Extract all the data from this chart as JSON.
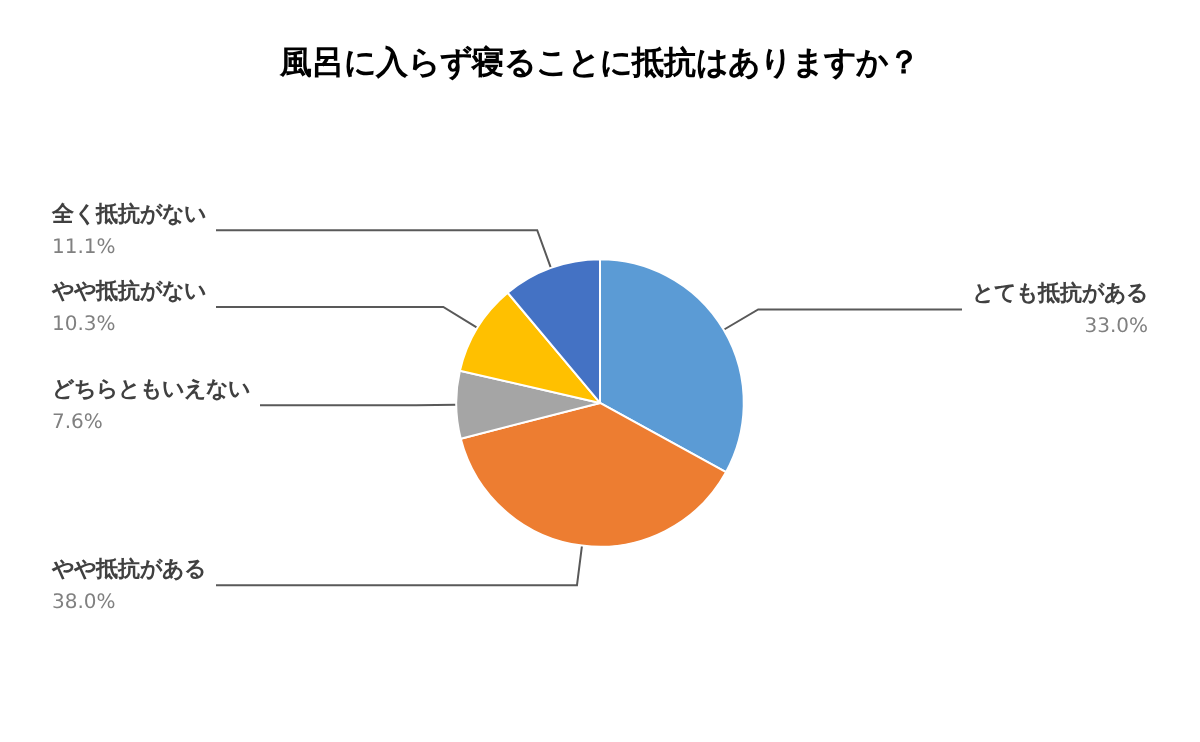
{
  "chart_data": {
    "type": "pie",
    "title": "風呂に入らず寝ることに抵抗はありますか？",
    "categories": [
      "とても抵抗がある",
      "やや抵抗がある",
      "どちらともいえない",
      "やや抵抗がない",
      "全く抵抗がない"
    ],
    "values": [
      33.0,
      38.0,
      7.6,
      10.3,
      11.1
    ],
    "colors": [
      "#5b9bd5",
      "#ed7d31",
      "#a5a5a5",
      "#ffc000",
      "#4472c4"
    ],
    "value_labels": [
      "33.0%",
      "38.0%",
      "7.6%",
      "10.3%",
      "11.1%"
    ],
    "legend": false
  }
}
